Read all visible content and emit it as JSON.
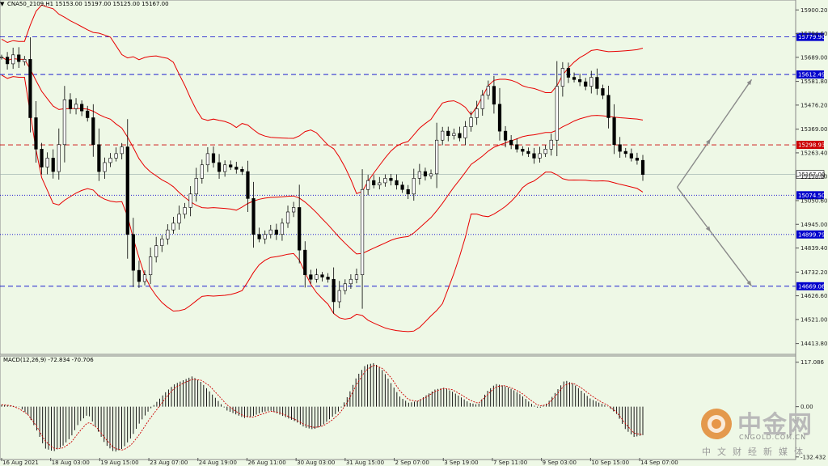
{
  "header": {
    "symbol_line": "CNA50_2109,H1  15153.00 15197.00 15125.00 15167.00",
    "arrow_glyph": "▼"
  },
  "macd_label": "MACD(12,26,9) -72.834 -70.706",
  "colors": {
    "background": "#eef8e6",
    "bollinger": "#e80000",
    "candle": "#000000",
    "level_blue": "#0000cc",
    "level_red": "#cc0000",
    "macd_hist": "#000000",
    "macd_signal": "#cc0000",
    "projection": "#8a8a8a"
  },
  "chart_data": [
    {
      "type": "candlestick",
      "name": "price",
      "y_ticks": [
        15900.2,
        15794.6,
        15689.0,
        15581.8,
        15476.2,
        15369.0,
        15263.4,
        15158.0,
        15050.6,
        14945.0,
        14839.4,
        14732.2,
        14626.6,
        14521.0,
        14413.8
      ],
      "ylim": [
        14380,
        15930
      ],
      "x_ticks": [
        "16 Aug 2021",
        "18 Aug 03:00",
        "19 Aug 15:00",
        "23 Aug 07:00",
        "24 Aug 19:00",
        "26 Aug 11:00",
        "30 Aug 03:00",
        "31 Aug 15:00",
        "2 Sep 07:00",
        "3 Sep 19:00",
        "7 Sep 11:00",
        "9 Sep 03:00",
        "10 Sep 15:00",
        "14 Sep 07:00"
      ],
      "closes": [
        15690,
        15660,
        15700,
        15670,
        15680,
        15420,
        15280,
        15200,
        15240,
        15180,
        15300,
        15500,
        15460,
        15480,
        15450,
        15420,
        15300,
        15180,
        15220,
        15240,
        15260,
        15290,
        14900,
        14740,
        14690,
        14720,
        14800,
        14850,
        14880,
        14920,
        14950,
        14990,
        15020,
        15080,
        15150,
        15210,
        15260,
        15220,
        15180,
        15210,
        15200,
        15190,
        15180,
        15060,
        14900,
        14880,
        14900,
        14920,
        14900,
        14950,
        15000,
        15020,
        14830,
        14720,
        14700,
        14720,
        14710,
        14700,
        14600,
        14650,
        14680,
        14700,
        14720,
        15100,
        15140,
        15120,
        15130,
        15150,
        15140,
        15120,
        15100,
        15080,
        15150,
        15180,
        15160,
        15170,
        15320,
        15360,
        15340,
        15350,
        15330,
        15380,
        15420,
        15460,
        15520,
        15560,
        15480,
        15360,
        15320,
        15300,
        15280,
        15270,
        15260,
        15240,
        15260,
        15280,
        15320,
        15560,
        15640,
        15600,
        15590,
        15580,
        15560,
        15600,
        15550,
        15520,
        15420,
        15300,
        15270,
        15260,
        15240,
        15230,
        15167
      ],
      "last_price": 15167.0,
      "levels": [
        {
          "value": 15779.9,
          "label": "15779.90",
          "color": "#0000cc",
          "style": "dashed"
        },
        {
          "value": 15612.49,
          "label": "15612.49",
          "color": "#0000cc",
          "style": "dashed"
        },
        {
          "value": 15298.93,
          "label": "15298.93",
          "color": "#cc0000",
          "style": "dashed"
        },
        {
          "value": 15074.5,
          "label": "15074.50",
          "color": "#0000cc",
          "style": "dotted"
        },
        {
          "value": 14899.79,
          "label": "14899.79",
          "color": "#0000cc",
          "style": "dotted"
        },
        {
          "value": 14669.06,
          "label": "14669.06",
          "color": "#0000cc",
          "style": "dashed"
        }
      ],
      "last_label": "15167.00",
      "projections": [
        {
          "from_bar": 118,
          "from_value": 15110,
          "to_bar": 131,
          "to_value": 15590
        },
        {
          "from_bar": 118,
          "from_value": 15110,
          "to_bar": 131,
          "to_value": 14670
        }
      ],
      "bollinger": {
        "period": 20,
        "deviations": 2
      }
    },
    {
      "type": "bar",
      "name": "MACD(12,26,9)",
      "y_ticks": [
        117.086,
        0.0,
        -132.432
      ],
      "ylim": [
        -135,
        125
      ],
      "histogram_shape": [
        5,
        3,
        0,
        -20,
        -60,
        -110,
        -118,
        -105,
        -80,
        -40,
        -20,
        -60,
        -100,
        -120,
        -110,
        -80,
        -40,
        -10,
        15,
        40,
        60,
        70,
        80,
        65,
        40,
        15,
        -10,
        -20,
        -30,
        -25,
        -15,
        -10,
        -20,
        -30,
        -40,
        -55,
        -60,
        -50,
        -30,
        -10,
        30,
        80,
        110,
        115,
        95,
        60,
        25,
        10,
        15,
        30,
        45,
        50,
        40,
        25,
        10,
        5,
        40,
        60,
        55,
        45,
        30,
        10,
        -5,
        10,
        40,
        70,
        60,
        40,
        20,
        10,
        0,
        -20,
        -60,
        -80,
        -75
      ],
      "signal_shape": [
        5,
        3,
        -5,
        -20,
        -50,
        -90,
        -110,
        -110,
        -95,
        -65,
        -40,
        -55,
        -85,
        -110,
        -115,
        -100,
        -70,
        -35,
        -5,
        25,
        50,
        62,
        72,
        70,
        55,
        30,
        5,
        -12,
        -25,
        -28,
        -20,
        -12,
        -15,
        -25,
        -35,
        -48,
        -55,
        -52,
        -38,
        -18,
        15,
        60,
        95,
        110,
        100,
        75,
        40,
        18,
        14,
        25,
        40,
        48,
        45,
        32,
        18,
        8,
        30,
        52,
        56,
        48,
        36,
        18,
        2,
        5,
        30,
        58,
        62,
        48,
        30,
        15,
        3,
        -15,
        -45,
        -70,
        -74
      ]
    }
  ],
  "watermark": {
    "brand": "中金网",
    "domain": "CNGOLD.COM.CN",
    "tagline": "中文财经新媒体"
  }
}
